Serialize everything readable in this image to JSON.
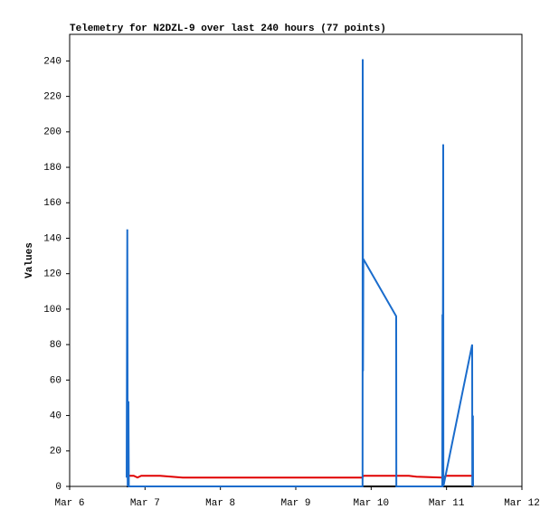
{
  "chart_data": {
    "type": "line",
    "title": "Telemetry for N2DZL-9 over last 240 hours (77 points)",
    "y_label": "Values",
    "xlim": [
      6,
      12
    ],
    "xticks": [
      {
        "value": 6,
        "label": "Mar 6"
      },
      {
        "value": 7,
        "label": "Mar 7"
      },
      {
        "value": 8,
        "label": "Mar 8"
      },
      {
        "value": 9,
        "label": "Mar 9"
      },
      {
        "value": 10,
        "label": "Mar 10"
      },
      {
        "value": 11,
        "label": "Mar 11"
      },
      {
        "value": 12,
        "label": "Mar 12"
      }
    ],
    "ylim": [
      0,
      255
    ],
    "yticks": [
      0,
      20,
      40,
      60,
      80,
      100,
      120,
      140,
      160,
      180,
      200,
      220,
      240
    ],
    "series": [
      {
        "color": "#000000",
        "x": [
          6.756,
          11.35
        ],
        "values": [
          0,
          0
        ]
      },
      {
        "color": "#e00000",
        "x": [
          6.756,
          6.85,
          6.9,
          6.95,
          7.2,
          7.5,
          9.88,
          9.9,
          10.5,
          10.6,
          10.95,
          11.0,
          11.35
        ],
        "values": [
          6,
          6,
          5,
          6,
          6,
          5,
          5,
          6,
          6,
          5.5,
          5,
          6,
          6
        ]
      },
      {
        "color": "#1a6ccc",
        "x": [
          6.756,
          6.765,
          6.77,
          6.78,
          6.785,
          9.886,
          9.888,
          9.892,
          9.896,
          9.9,
          10.332,
          10.334,
          10.944,
          10.946,
          10.948,
          10.956,
          10.958,
          11.34,
          11.342,
          11.35,
          11.352
        ],
        "values": [
          5,
          145,
          0,
          48,
          0,
          0,
          241,
          65,
          128,
          128,
          96,
          0,
          0,
          97,
          0,
          193,
          0,
          80,
          0,
          40,
          0
        ]
      }
    ]
  }
}
